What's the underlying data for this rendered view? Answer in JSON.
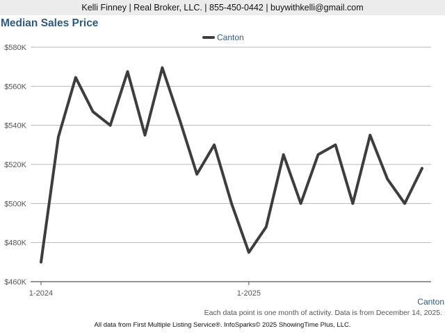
{
  "header": {
    "contact_line": "Kelli Finney | Real Broker, LLC. | 855-450-0442 | buywithkelli@gmail.com"
  },
  "chart_data": {
    "type": "line",
    "title": "Median Sales Price",
    "x": [
      "2024-01",
      "2024-02",
      "2024-03",
      "2024-04",
      "2024-05",
      "2024-06",
      "2024-07",
      "2024-08",
      "2024-09",
      "2024-10",
      "2024-11",
      "2024-12",
      "2025-01",
      "2025-02",
      "2025-03",
      "2025-04",
      "2025-05",
      "2025-06",
      "2025-07",
      "2025-08",
      "2025-09",
      "2025-10",
      "2025-11"
    ],
    "series": [
      {
        "name": "Canton",
        "color": "#3d3d3d",
        "values": [
          470000,
          534000,
          564500,
          547000,
          540000,
          567500,
          535000,
          569500,
          543000,
          515000,
          530000,
          500000,
          475000,
          488000,
          525000,
          500000,
          525000,
          530000,
          500000,
          535000,
          512500,
          500000,
          518000
        ]
      }
    ],
    "ylim": [
      460000,
      580000
    ],
    "y_ticks": [
      "$460K",
      "$480K",
      "$500K",
      "$520K",
      "$540K",
      "$560K",
      "$580K"
    ],
    "y_tick_values": [
      460000,
      480000,
      500000,
      520000,
      540000,
      560000,
      580000
    ],
    "x_tick_labels": [
      "1-2024",
      "1-2025"
    ],
    "x_tick_indices": [
      0,
      12
    ],
    "grid": true,
    "legend_position": "top-center",
    "xlabel": "",
    "ylabel": "",
    "corner_label": "Canton"
  },
  "footer": {
    "note": "Each data point is one month of activity. Data is from December 14, 2025.",
    "attribution": "All data from First Multiple Listing Service®. InfoSparks© 2025 ShowingTime Plus, LLC."
  }
}
